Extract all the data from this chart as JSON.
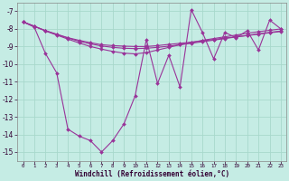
{
  "xlabel": "Windchill (Refroidissement éolien,°C)",
  "background_color": "#c5ece4",
  "grid_color": "#a8d8cc",
  "line_color": "#993399",
  "x": [
    0,
    1,
    2,
    3,
    4,
    5,
    6,
    7,
    8,
    9,
    10,
    11,
    12,
    13,
    14,
    15,
    16,
    17,
    18,
    19,
    20,
    21,
    22,
    23
  ],
  "y_main": [
    -7.6,
    -7.9,
    -9.4,
    -10.5,
    -13.7,
    -14.1,
    -14.35,
    -15.0,
    -14.35,
    -13.4,
    -11.8,
    -8.6,
    -11.1,
    -9.5,
    -11.3,
    -6.9,
    -8.2,
    -9.7,
    -8.2,
    -8.5,
    -8.1,
    -9.2,
    -7.5,
    -8.0
  ],
  "y_trend1": [
    -7.6,
    -7.85,
    -8.1,
    -8.3,
    -8.5,
    -8.65,
    -8.78,
    -8.9,
    -8.95,
    -8.98,
    -9.0,
    -9.0,
    -8.95,
    -8.88,
    -8.82,
    -8.75,
    -8.68,
    -8.6,
    -8.52,
    -8.45,
    -8.38,
    -8.3,
    -8.22,
    -8.15
  ],
  "y_trend2": [
    -7.6,
    -7.85,
    -8.1,
    -8.32,
    -8.52,
    -8.7,
    -8.85,
    -8.97,
    -9.05,
    -9.1,
    -9.12,
    -9.1,
    -9.05,
    -8.98,
    -8.9,
    -8.82,
    -8.73,
    -8.64,
    -8.55,
    -8.46,
    -8.37,
    -8.28,
    -8.2,
    -8.12
  ],
  "y_trend3": [
    -7.6,
    -7.85,
    -8.12,
    -8.35,
    -8.58,
    -8.8,
    -9.0,
    -9.15,
    -9.28,
    -9.38,
    -9.42,
    -9.35,
    -9.2,
    -9.05,
    -8.9,
    -8.78,
    -8.65,
    -8.55,
    -8.45,
    -8.35,
    -8.25,
    -8.16,
    -8.08,
    -8.0
  ],
  "ylim": [
    -15.5,
    -6.5
  ],
  "yticks": [
    -15,
    -14,
    -13,
    -12,
    -11,
    -10,
    -9,
    -8,
    -7
  ],
  "xticks": [
    0,
    1,
    2,
    3,
    4,
    5,
    6,
    7,
    8,
    9,
    10,
    11,
    12,
    13,
    14,
    15,
    16,
    17,
    18,
    19,
    20,
    21,
    22,
    23
  ],
  "markersize": 2.0,
  "linewidth": 0.8
}
